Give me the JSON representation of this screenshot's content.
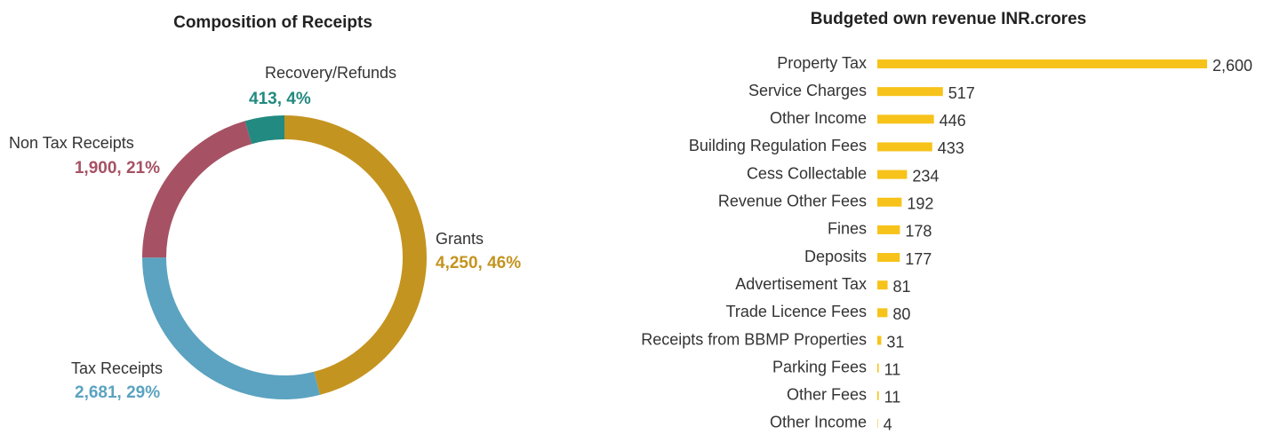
{
  "chart_data": [
    {
      "type": "pie",
      "title": "Composition of Receipts",
      "categories": [
        "Grants",
        "Tax Receipts",
        "Non Tax Receipts",
        "Recovery/Refunds"
      ],
      "values": [
        4250,
        2681,
        1900,
        413
      ],
      "value_labels": [
        "4,250, 46%",
        "2,681, 29%",
        "1,900, 21%",
        "413, 4%"
      ],
      "colors": [
        "#c49420",
        "#5ba3c0",
        "#a65264",
        "#228a80"
      ]
    },
    {
      "type": "hbar",
      "title": "Budgeted own revenue INR.crores",
      "categories": [
        "Property Tax",
        "Service Charges",
        "Other Income",
        "Building Regulation Fees",
        "Cess Collectable",
        "Revenue Other Fees",
        "Fines",
        "Deposits",
        "Advertisement Tax",
        "Trade Licence Fees",
        "Receipts from BBMP Properties",
        "Parking Fees",
        "Other Fees",
        "Other Income"
      ],
      "values": [
        2600,
        517,
        446,
        433,
        234,
        192,
        178,
        177,
        81,
        80,
        31,
        11,
        11,
        4
      ],
      "value_labels": [
        "2,600",
        "517",
        "446",
        "433",
        "234",
        "192",
        "178",
        "177",
        "81",
        "80",
        "31",
        "11",
        "11",
        "4"
      ],
      "color": "#f7c31a"
    }
  ]
}
